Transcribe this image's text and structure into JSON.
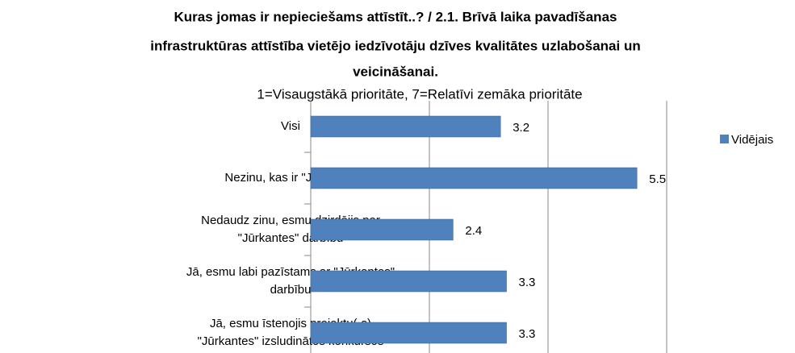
{
  "chart_data": {
    "type": "barh",
    "title": [
      "Kuras jomas ir nepieciešams attīstīt..? / 2.1. Brīvā laika pavadīšanas",
      "infrastruktūras attīstība vietējo iedzīvotāju dzīves kvalitātes uzlabošanai un",
      "veicināšanai."
    ],
    "subtitle": "1=Visaugstākā prioritāte, 7=Relatīvi zemāka prioritāte",
    "categories": [
      [
        "Visi"
      ],
      [
        "Nezinu, kas ir \"Jūrkante\""
      ],
      [
        "Nedaudz zinu, esmu dzirdējis par",
        "\"Jūrkantes\" darbību"
      ],
      [
        "Jā, esmu labi pazīstams ar \"Jūrkantes\"",
        "darbību"
      ],
      [
        "Jā, esmu īstenojis projektu(-s)",
        "\"Jūrkantes\" izsludinātos konkursos"
      ]
    ],
    "series": [
      {
        "name": "Vidējais",
        "color": "#4f81bd",
        "values": [
          3.2,
          5.5,
          2.4,
          3.3,
          3.3
        ]
      }
    ],
    "xlim": [
      0,
      6
    ],
    "xticks": [
      0,
      2,
      4,
      6
    ],
    "grid": true,
    "legend": "right"
  }
}
